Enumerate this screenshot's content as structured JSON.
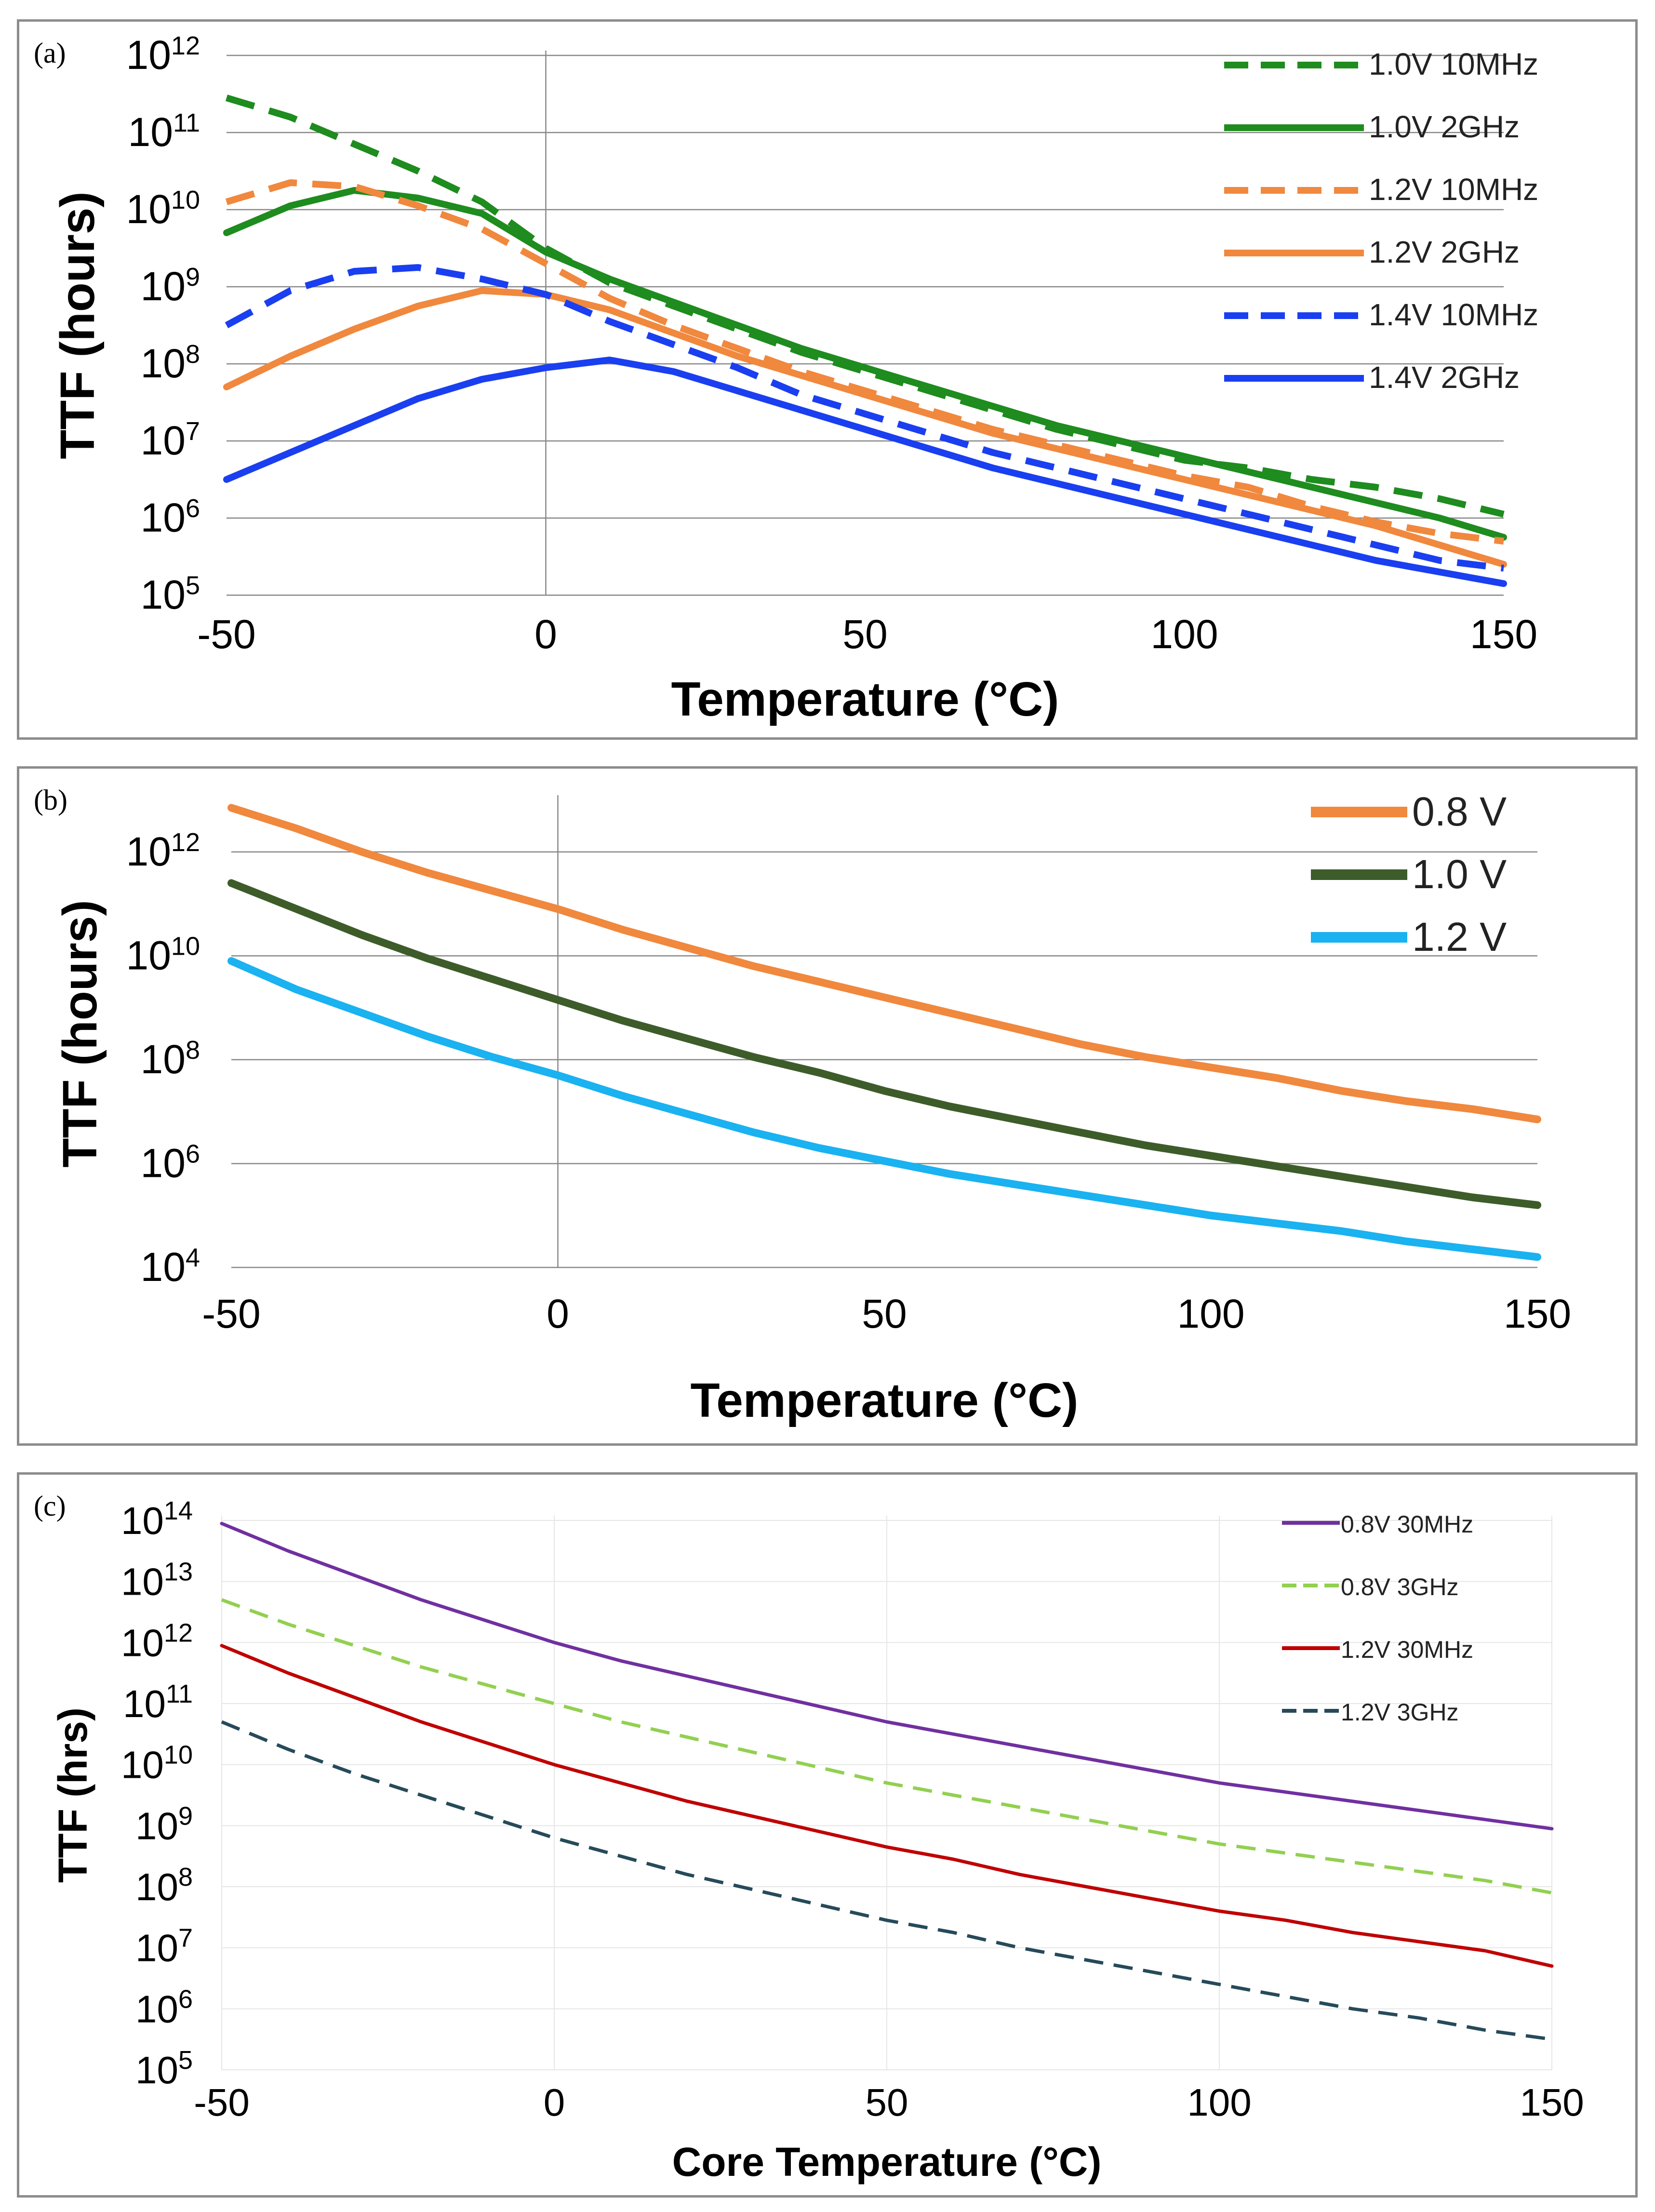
{
  "chart_data": [
    {
      "id": "a",
      "type": "line",
      "panel_label": "(a)",
      "xlabel": "Temperature (°C)",
      "ylabel": "TTF (hours)",
      "xlim": [
        -50,
        150
      ],
      "ylim_log10": [
        5,
        12
      ],
      "x_ticks": [
        "-50",
        "0",
        "50",
        "100",
        "150"
      ],
      "y_tick_exponents": [
        "5",
        "6",
        "7",
        "8",
        "9",
        "10",
        "11",
        "12"
      ],
      "grid": true,
      "legend_position": "top-right",
      "series": [
        {
          "name": "1.0V 10MHz",
          "color": "#1e8c1e",
          "dashed": true,
          "x": [
            -50,
            -40,
            -30,
            -20,
            -10,
            0,
            10,
            20,
            30,
            40,
            50,
            60,
            70,
            80,
            90,
            100,
            110,
            120,
            130,
            140,
            150
          ],
          "log10": [
            11.45,
            11.2,
            10.85,
            10.5,
            10.1,
            9.5,
            9.05,
            8.75,
            8.45,
            8.15,
            7.9,
            7.65,
            7.4,
            7.15,
            6.95,
            6.75,
            6.65,
            6.5,
            6.4,
            6.25,
            6.05
          ]
        },
        {
          "name": "1.0V 2GHz",
          "color": "#1e8c1e",
          "dashed": false,
          "x": [
            -50,
            -40,
            -30,
            -20,
            -10,
            0,
            10,
            20,
            30,
            40,
            50,
            60,
            70,
            80,
            90,
            100,
            110,
            120,
            130,
            140,
            150
          ],
          "log10": [
            9.7,
            10.05,
            10.25,
            10.15,
            9.95,
            9.45,
            9.1,
            8.8,
            8.5,
            8.2,
            7.95,
            7.7,
            7.45,
            7.2,
            7.0,
            6.8,
            6.6,
            6.4,
            6.2,
            6.0,
            5.75
          ]
        },
        {
          "name": "1.2V 10MHz",
          "color": "#f0883e",
          "dashed": true,
          "x": [
            -50,
            -40,
            -30,
            -20,
            -10,
            0,
            10,
            20,
            30,
            40,
            50,
            60,
            70,
            80,
            90,
            100,
            110,
            120,
            130,
            140,
            150
          ],
          "log10": [
            10.1,
            10.35,
            10.3,
            10.05,
            9.75,
            9.3,
            8.85,
            8.5,
            8.2,
            7.9,
            7.65,
            7.4,
            7.15,
            6.95,
            6.75,
            6.55,
            6.4,
            6.15,
            5.95,
            5.8,
            5.7
          ]
        },
        {
          "name": "1.2V 2GHz",
          "color": "#f0883e",
          "dashed": false,
          "x": [
            -50,
            -40,
            -30,
            -20,
            -10,
            0,
            10,
            20,
            30,
            40,
            50,
            60,
            70,
            80,
            90,
            100,
            110,
            120,
            130,
            140,
            150
          ],
          "log10": [
            7.7,
            8.1,
            8.45,
            8.75,
            8.95,
            8.9,
            8.7,
            8.4,
            8.1,
            7.85,
            7.6,
            7.35,
            7.1,
            6.9,
            6.7,
            6.5,
            6.3,
            6.1,
            5.9,
            5.65,
            5.4
          ]
        },
        {
          "name": "1.4V 10MHz",
          "color": "#1a3ff0",
          "dashed": true,
          "x": [
            -50,
            -40,
            -30,
            -20,
            -10,
            0,
            10,
            20,
            30,
            40,
            50,
            60,
            70,
            80,
            90,
            100,
            110,
            120,
            130,
            140,
            150
          ],
          "log10": [
            8.5,
            8.95,
            9.2,
            9.25,
            9.1,
            8.9,
            8.55,
            8.25,
            7.95,
            7.6,
            7.35,
            7.1,
            6.85,
            6.65,
            6.45,
            6.25,
            6.05,
            5.85,
            5.65,
            5.45,
            5.35
          ]
        },
        {
          "name": "1.4V 2GHz",
          "color": "#1a3ff0",
          "dashed": false,
          "x": [
            -50,
            -40,
            -30,
            -20,
            -10,
            0,
            10,
            20,
            30,
            40,
            50,
            60,
            70,
            80,
            90,
            100,
            110,
            120,
            130,
            140,
            150
          ],
          "log10": [
            6.5,
            6.85,
            7.2,
            7.55,
            7.8,
            7.95,
            8.05,
            7.9,
            7.65,
            7.4,
            7.15,
            6.9,
            6.65,
            6.45,
            6.25,
            6.05,
            5.85,
            5.65,
            5.45,
            5.3,
            5.15
          ]
        }
      ]
    },
    {
      "id": "b",
      "type": "line",
      "panel_label": "(b)",
      "xlabel": "Temperature (°C)",
      "ylabel": "TTF (hours)",
      "xlim": [
        -50,
        150
      ],
      "ylim_log10": [
        4,
        13
      ],
      "x_ticks": [
        "-50",
        "0",
        "50",
        "100",
        "150"
      ],
      "y_tick_exponents": [
        "4",
        "6",
        "8",
        "10",
        "12"
      ],
      "grid": true,
      "legend_position": "top-right",
      "series": [
        {
          "name": "0.8 V",
          "color": "#f0883e",
          "dashed": false,
          "x": [
            -50,
            -40,
            -30,
            -20,
            -10,
            0,
            10,
            20,
            30,
            40,
            50,
            60,
            70,
            80,
            90,
            100,
            110,
            120,
            130,
            140,
            150
          ],
          "log10": [
            12.85,
            12.45,
            12.0,
            11.6,
            11.25,
            10.9,
            10.5,
            10.15,
            9.8,
            9.5,
            9.2,
            8.9,
            8.6,
            8.3,
            8.05,
            7.85,
            7.65,
            7.4,
            7.2,
            7.05,
            6.85
          ]
        },
        {
          "name": "1.0 V",
          "color": "#3d5c2a",
          "dashed": false,
          "x": [
            -50,
            -40,
            -30,
            -20,
            -10,
            0,
            10,
            20,
            30,
            40,
            50,
            60,
            70,
            80,
            90,
            100,
            110,
            120,
            130,
            140,
            150
          ],
          "log10": [
            11.4,
            10.9,
            10.4,
            9.95,
            9.55,
            9.15,
            8.75,
            8.4,
            8.05,
            7.75,
            7.4,
            7.1,
            6.85,
            6.6,
            6.35,
            6.15,
            5.95,
            5.75,
            5.55,
            5.35,
            5.2
          ]
        },
        {
          "name": "1.2 V",
          "color": "#1ab2f0",
          "dashed": false,
          "x": [
            -50,
            -40,
            -30,
            -20,
            -10,
            0,
            10,
            20,
            30,
            40,
            50,
            60,
            70,
            80,
            90,
            100,
            110,
            120,
            130,
            140,
            150
          ],
          "log10": [
            9.9,
            9.35,
            8.9,
            8.45,
            8.05,
            7.7,
            7.3,
            6.95,
            6.6,
            6.3,
            6.05,
            5.8,
            5.6,
            5.4,
            5.2,
            5.0,
            4.85,
            4.7,
            4.5,
            4.35,
            4.2
          ]
        }
      ]
    },
    {
      "id": "c",
      "type": "line",
      "panel_label": "(c)",
      "xlabel": "Core Temperature (°C)",
      "ylabel": "TTF (hrs)",
      "xlim": [
        -50,
        150
      ],
      "ylim_log10": [
        5,
        14
      ],
      "x_ticks": [
        "-50",
        "0",
        "50",
        "100",
        "150"
      ],
      "y_tick_exponents": [
        "5",
        "6",
        "7",
        "8",
        "9",
        "10",
        "11",
        "12",
        "13",
        "14"
      ],
      "grid": true,
      "legend_position": "top-right",
      "series": [
        {
          "name": "0.8V 30MHz",
          "color": "#7030a0",
          "dashed": false,
          "x": [
            -50,
            -40,
            -30,
            -20,
            -10,
            0,
            10,
            20,
            30,
            40,
            50,
            60,
            70,
            80,
            90,
            100,
            110,
            120,
            130,
            140,
            150
          ],
          "log10": [
            13.95,
            13.5,
            13.1,
            12.7,
            12.35,
            12.0,
            11.7,
            11.45,
            11.2,
            10.95,
            10.7,
            10.5,
            10.3,
            10.1,
            9.9,
            9.7,
            9.55,
            9.4,
            9.25,
            9.1,
            8.95
          ]
        },
        {
          "name": "0.8V 3GHz",
          "color": "#92d050",
          "dashed": true,
          "x": [
            -50,
            -40,
            -30,
            -20,
            -10,
            0,
            10,
            20,
            30,
            40,
            50,
            60,
            70,
            80,
            90,
            100,
            110,
            120,
            130,
            140,
            150
          ],
          "log10": [
            12.7,
            12.3,
            11.95,
            11.6,
            11.3,
            11.0,
            10.7,
            10.45,
            10.2,
            9.95,
            9.7,
            9.5,
            9.3,
            9.1,
            8.9,
            8.7,
            8.55,
            8.4,
            8.25,
            8.1,
            7.9
          ]
        },
        {
          "name": "1.2V 30MHz",
          "color": "#c00000",
          "dashed": false,
          "x": [
            -50,
            -40,
            -30,
            -20,
            -10,
            0,
            10,
            20,
            30,
            40,
            50,
            60,
            70,
            80,
            90,
            100,
            110,
            120,
            130,
            140,
            150
          ],
          "log10": [
            11.95,
            11.5,
            11.1,
            10.7,
            10.35,
            10.0,
            9.7,
            9.4,
            9.15,
            8.9,
            8.65,
            8.45,
            8.2,
            8.0,
            7.8,
            7.6,
            7.45,
            7.25,
            7.1,
            6.95,
            6.7
          ]
        },
        {
          "name": "1.2V 3GHz",
          "color": "#264a5a",
          "dashed": true,
          "x": [
            -50,
            -40,
            -30,
            -20,
            -10,
            0,
            10,
            20,
            30,
            40,
            50,
            60,
            70,
            80,
            90,
            100,
            110,
            120,
            130,
            140,
            150
          ],
          "log10": [
            10.7,
            10.25,
            9.85,
            9.5,
            9.15,
            8.8,
            8.5,
            8.2,
            7.95,
            7.7,
            7.45,
            7.25,
            7.0,
            6.8,
            6.6,
            6.4,
            6.2,
            6.0,
            5.85,
            5.65,
            5.5
          ]
        }
      ]
    }
  ]
}
